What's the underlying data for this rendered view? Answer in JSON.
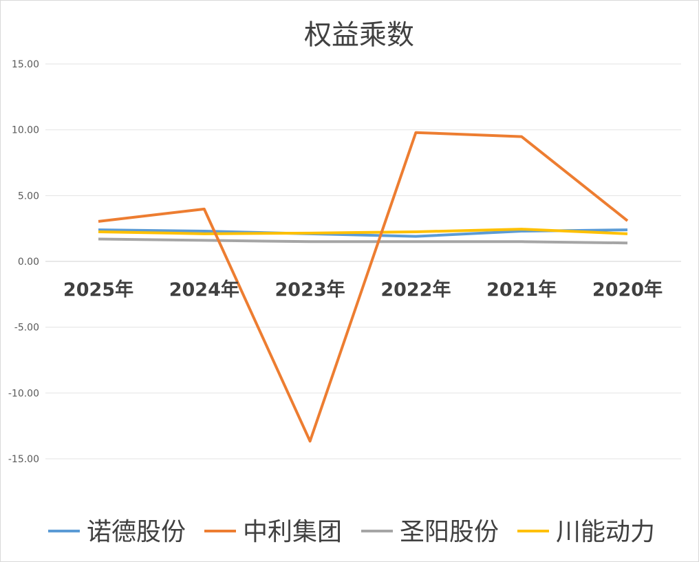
{
  "chart_data": {
    "type": "line",
    "title": "权益乘数",
    "xlabel": "",
    "ylabel": "",
    "categories": [
      "2025年",
      "2024年",
      "2023年",
      "2022年",
      "2021年",
      "2020年"
    ],
    "yticks": [
      "15.00",
      "10.00",
      "5.00",
      "0.00",
      "-5.00",
      "-10.00",
      "-15.00"
    ],
    "ylim": [
      -19,
      15
    ],
    "grid": true,
    "legend_position": "bottom",
    "series": [
      {
        "name": "诺德股份",
        "color": "#5B9BD5",
        "values": [
          2.4,
          2.3,
          2.1,
          1.9,
          2.3,
          2.4
        ]
      },
      {
        "name": "中利集团",
        "color": "#ED7D31",
        "values": [
          3.04,
          3.98,
          -13.66,
          9.79,
          9.48,
          3.09
        ]
      },
      {
        "name": "圣阳股份",
        "color": "#A5A5A5",
        "values": [
          1.7,
          1.6,
          1.5,
          1.5,
          1.5,
          1.4
        ]
      },
      {
        "name": "川能动力",
        "color": "#FFC000",
        "values": [
          2.25,
          2.1,
          2.15,
          2.25,
          2.45,
          2.1
        ]
      }
    ]
  }
}
